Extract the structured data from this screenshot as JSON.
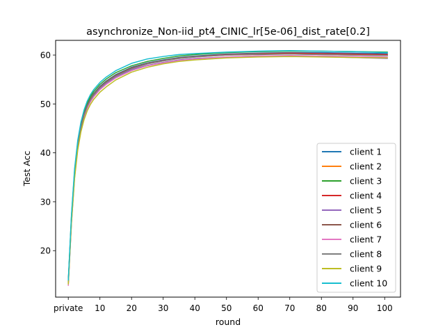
{
  "chart_data": {
    "type": "line",
    "title": "asynchronize_Non-iid_pt4_CINIC_lr[5e-06]_dist_rate[0.2]",
    "xlabel": "round",
    "ylabel": "Test Acc",
    "xlim": [
      -4,
      105
    ],
    "ylim": [
      10.5,
      63
    ],
    "x_ticks": [
      {
        "value": 0,
        "label": "private"
      },
      {
        "value": 10,
        "label": "10"
      },
      {
        "value": 20,
        "label": "20"
      },
      {
        "value": 30,
        "label": "30"
      },
      {
        "value": 40,
        "label": "40"
      },
      {
        "value": 50,
        "label": "50"
      },
      {
        "value": 60,
        "label": "60"
      },
      {
        "value": 70,
        "label": "70"
      },
      {
        "value": 80,
        "label": "80"
      },
      {
        "value": 90,
        "label": "90"
      },
      {
        "value": 100,
        "label": "100"
      }
    ],
    "y_ticks": [
      20,
      30,
      40,
      50,
      60
    ],
    "grid": false,
    "legend_position": "bottom-right",
    "x": [
      0,
      1,
      2,
      3,
      4,
      5,
      6,
      7,
      8,
      10,
      12,
      15,
      20,
      25,
      30,
      35,
      40,
      50,
      60,
      70,
      80,
      90,
      101
    ],
    "series": [
      {
        "name": "client 1",
        "color": "#1f77b4",
        "values": [
          13.5,
          26.5,
          36.0,
          41.8,
          45.5,
          48.0,
          49.8,
          51.1,
          52.1,
          53.6,
          54.7,
          56.0,
          57.5,
          58.4,
          59.0,
          59.5,
          59.8,
          60.2,
          60.4,
          60.5,
          60.5,
          60.4,
          60.3
        ]
      },
      {
        "name": "client 2",
        "color": "#ff7f0e",
        "values": [
          13.2,
          26.0,
          35.5,
          41.4,
          45.1,
          47.7,
          49.5,
          50.8,
          51.8,
          53.3,
          54.4,
          55.7,
          57.2,
          58.2,
          58.8,
          59.3,
          59.6,
          60.0,
          60.2,
          60.3,
          60.2,
          60.1,
          60.0
        ]
      },
      {
        "name": "client 3",
        "color": "#2ca02c",
        "values": [
          13.8,
          27.0,
          36.4,
          42.2,
          45.9,
          48.4,
          50.2,
          51.5,
          52.5,
          54.0,
          55.1,
          56.4,
          57.8,
          58.7,
          59.3,
          59.8,
          60.1,
          60.5,
          60.7,
          60.8,
          60.8,
          60.7,
          60.6
        ]
      },
      {
        "name": "client 4",
        "color": "#d62728",
        "values": [
          13.4,
          26.2,
          35.7,
          41.5,
          45.2,
          47.8,
          49.6,
          50.9,
          51.9,
          53.4,
          54.5,
          55.8,
          57.3,
          58.3,
          58.9,
          59.4,
          59.7,
          60.1,
          60.3,
          60.4,
          60.3,
          60.2,
          60.1
        ]
      },
      {
        "name": "client 5",
        "color": "#9467bd",
        "values": [
          13.0,
          25.8,
          35.3,
          41.2,
          44.9,
          47.5,
          49.3,
          50.6,
          51.6,
          53.1,
          54.2,
          55.5,
          57.0,
          57.9,
          58.5,
          59.0,
          59.3,
          59.6,
          59.8,
          59.8,
          59.7,
          59.5,
          59.3
        ]
      },
      {
        "name": "client 6",
        "color": "#8c564b",
        "values": [
          13.6,
          26.3,
          35.8,
          41.6,
          45.3,
          47.9,
          49.7,
          51.0,
          52.0,
          53.5,
          54.6,
          55.9,
          57.4,
          58.3,
          58.9,
          59.4,
          59.7,
          60.0,
          60.1,
          60.2,
          60.1,
          60.0,
          59.9
        ]
      },
      {
        "name": "client 7",
        "color": "#e377c2",
        "values": [
          12.8,
          25.5,
          35.0,
          41.0,
          44.7,
          47.3,
          49.1,
          50.4,
          51.4,
          52.9,
          54.0,
          55.3,
          56.8,
          57.8,
          58.4,
          58.9,
          59.2,
          59.6,
          59.8,
          59.9,
          59.8,
          59.7,
          59.6
        ]
      },
      {
        "name": "client 8",
        "color": "#7f7f7f",
        "values": [
          13.3,
          26.1,
          35.6,
          41.4,
          45.1,
          47.7,
          49.5,
          50.8,
          51.8,
          53.3,
          54.4,
          55.7,
          57.2,
          58.2,
          58.8,
          59.3,
          59.6,
          60.0,
          60.2,
          60.2,
          60.1,
          60.0,
          59.9
        ]
      },
      {
        "name": "client 9",
        "color": "#bcbd22",
        "values": [
          13.1,
          25.6,
          34.8,
          40.6,
          44.3,
          46.8,
          48.6,
          49.9,
          50.9,
          52.4,
          53.5,
          54.9,
          56.5,
          57.5,
          58.2,
          58.7,
          59.0,
          59.4,
          59.6,
          59.7,
          59.6,
          59.5,
          59.4
        ]
      },
      {
        "name": "client 10",
        "color": "#17becf",
        "values": [
          13.9,
          27.3,
          36.8,
          42.6,
          46.3,
          48.8,
          50.6,
          51.9,
          52.9,
          54.4,
          55.5,
          56.8,
          58.3,
          59.2,
          59.7,
          60.1,
          60.3,
          60.6,
          60.8,
          60.9,
          60.8,
          60.7,
          60.5
        ]
      }
    ]
  }
}
